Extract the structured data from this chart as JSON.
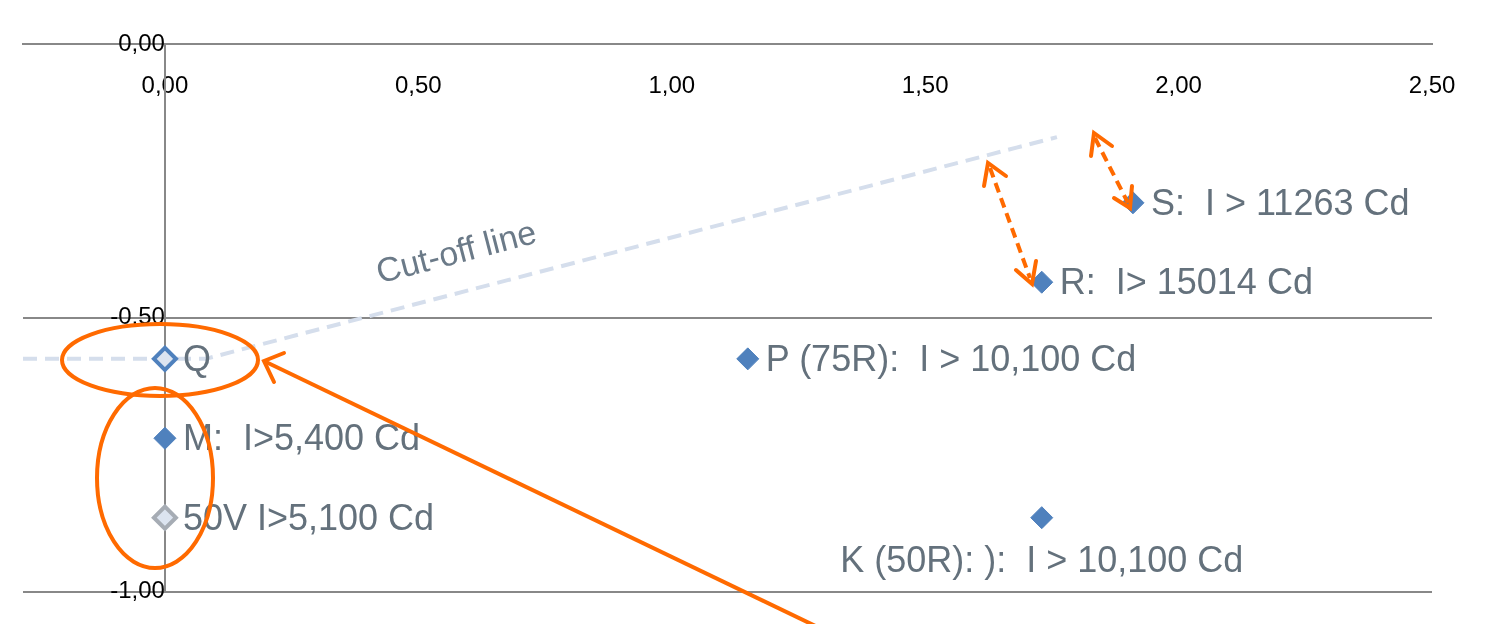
{
  "chart_data": {
    "type": "scatter",
    "xlim": [
      -0.28,
      2.5
    ],
    "xticks": [
      {
        "value": 0,
        "label": "0,00"
      },
      {
        "value": 0.5,
        "label": "0,50"
      },
      {
        "value": 1,
        "label": "1,00"
      },
      {
        "value": 1.5,
        "label": "1,50"
      },
      {
        "value": 2,
        "label": "2,00"
      },
      {
        "value": 2.5,
        "label": "2,50"
      }
    ],
    "ylim": [
      -1,
      0
    ],
    "yticks": [
      {
        "value": 0,
        "label": "0,00"
      },
      {
        "value": -0.5,
        "label": "-0,50"
      },
      {
        "value": -1,
        "label": "-1,00"
      }
    ],
    "grid": "y",
    "legend": false,
    "marker": "diamond",
    "series": [
      {
        "type": "scatter",
        "color": "#4f81bd",
        "x": [
          1.91,
          1.73,
          1.15,
          0,
          1.73
        ],
        "values": [
          -0.29,
          -0.435,
          -0.575,
          -0.72,
          -0.865
        ]
      },
      {
        "type": "scatter",
        "color": "#4f81bd",
        "x": [
          0
        ],
        "values": [
          -0.575
        ]
      },
      {
        "type": "scatter",
        "color": "#a6acb4",
        "x": [
          0
        ],
        "values": [
          -0.865
        ]
      },
      {
        "type": "line",
        "color": "#d5deec",
        "line_style": "dashed",
        "marker": "none",
        "x": [
          -0.28,
          0.08,
          1.76
        ],
        "values": [
          -0.575,
          -0.575,
          -0.17
        ]
      }
    ],
    "annotations": [
      {
        "text": "S:  I > 11263 Cd",
        "x": 1.91,
        "y": -0.29
      },
      {
        "text": "R:  I> 15014 Cd",
        "x": 1.73,
        "y": -0.435
      },
      {
        "text": "Q",
        "x": 0,
        "y": -0.575
      },
      {
        "text": "P (75R):  I > 10,100 Cd",
        "x": 1.15,
        "y": -0.575
      },
      {
        "text": "M:  I>5,400 Cd",
        "x": 0,
        "y": -0.72
      },
      {
        "text": "50V I>5,100 Cd",
        "x": 0,
        "y": -0.865
      },
      {
        "text": "K (50R): ):  I > 10,100 Cd",
        "x": 1.73,
        "y": -0.865
      },
      "Cut-off line"
    ]
  }
}
